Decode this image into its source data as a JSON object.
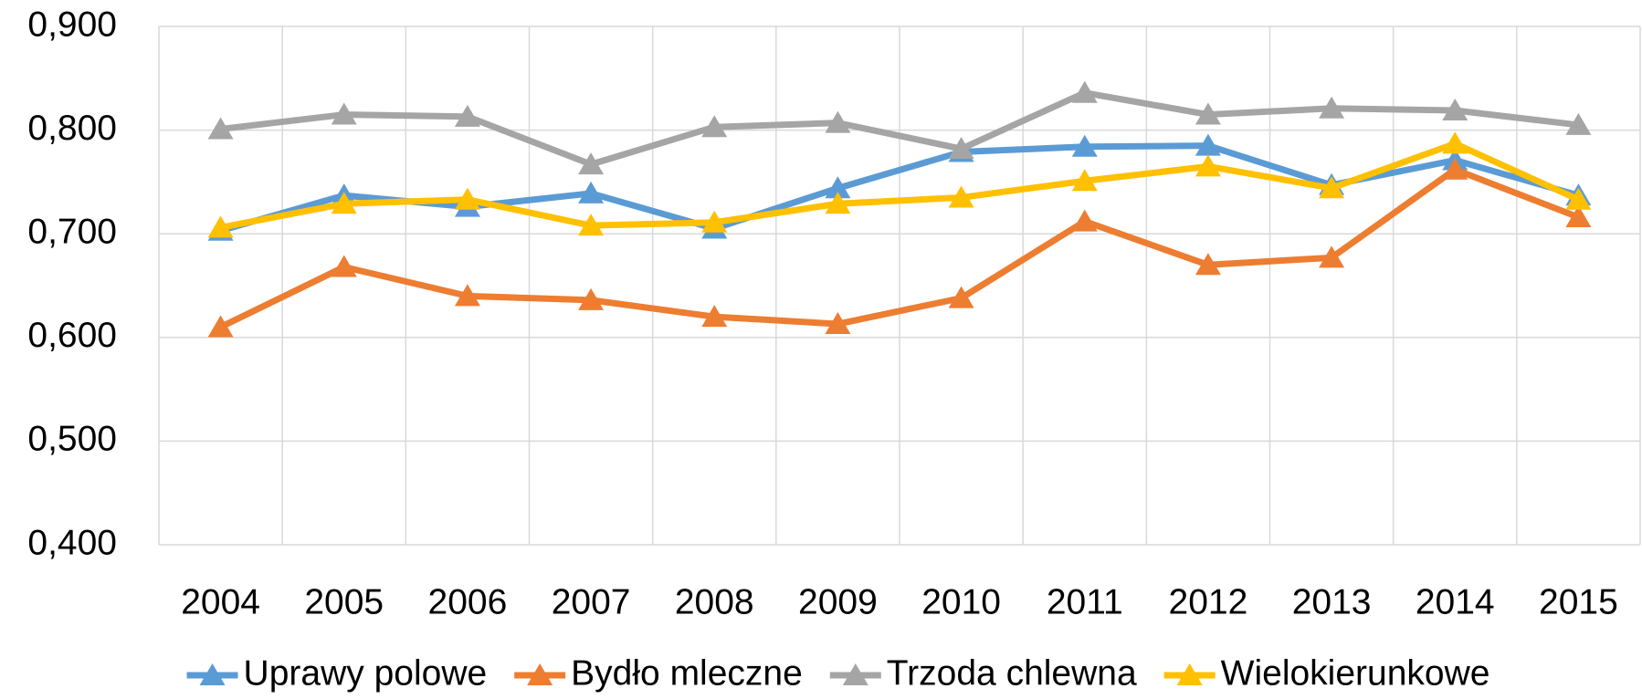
{
  "chart_data": {
    "type": "line",
    "categories": [
      "2004",
      "2005",
      "2006",
      "2007",
      "2008",
      "2009",
      "2010",
      "2011",
      "2012",
      "2013",
      "2014",
      "2015"
    ],
    "series": [
      {
        "name": "Uprawy polowe",
        "color": "#5b9bd5",
        "values": [
          0.703,
          0.737,
          0.726,
          0.739,
          0.705,
          0.744,
          0.779,
          0.784,
          0.785,
          0.747,
          0.771,
          0.737
        ]
      },
      {
        "name": "Bydło mleczne",
        "color": "#ed7d31",
        "values": [
          0.61,
          0.668,
          0.64,
          0.636,
          0.62,
          0.613,
          0.638,
          0.712,
          0.67,
          0.677,
          0.762,
          0.716
        ]
      },
      {
        "name": "Trzoda chlewna",
        "color": "#a5a5a5",
        "values": [
          0.801,
          0.815,
          0.813,
          0.767,
          0.803,
          0.807,
          0.782,
          0.836,
          0.815,
          0.821,
          0.819,
          0.805
        ]
      },
      {
        "name": "Wielokierunkowe",
        "color": "#ffc000",
        "values": [
          0.706,
          0.729,
          0.733,
          0.708,
          0.711,
          0.729,
          0.735,
          0.751,
          0.765,
          0.744,
          0.787,
          0.733
        ]
      }
    ],
    "ylim": [
      0.4,
      0.9
    ],
    "yticks": [
      {
        "value": 0.4,
        "label": "0,400"
      },
      {
        "value": 0.5,
        "label": "0,500"
      },
      {
        "value": 0.6,
        "label": "0,600"
      },
      {
        "value": 0.7,
        "label": "0,700"
      },
      {
        "value": 0.8,
        "label": "0,800"
      },
      {
        "value": 0.9,
        "label": "0,900"
      }
    ],
    "grid": true,
    "legend": "bottom"
  }
}
